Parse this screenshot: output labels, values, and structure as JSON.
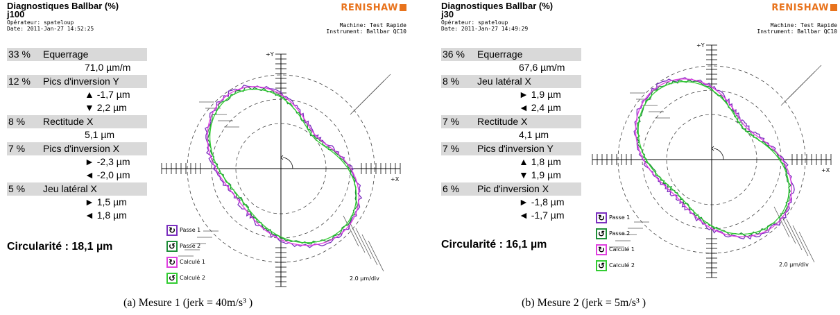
{
  "panels": [
    {
      "title": "Diagnostiques Ballbar (%)",
      "subtitle": "j100",
      "operator": "Opérateur: spateloup",
      "date": "Date: 2011-Jan-27 14:52:25",
      "brand": "RENISHAW",
      "machine": "Machine: Test Rapide",
      "instrument": "Instrument: Ballbar QC10",
      "results": [
        {
          "pct": "33 %",
          "name": "Equerrage",
          "values": [
            "71,0 µm/m"
          ]
        },
        {
          "pct": "12 %",
          "name": "Pics d'inversion Y",
          "values": [
            "▲ -1,7 µm",
            "▼ 2,2 µm"
          ]
        },
        {
          "pct": "8 %",
          "name": "Rectitude X",
          "values": [
            "5,1 µm"
          ]
        },
        {
          "pct": "7 %",
          "name": "Pics d'inversion X",
          "values": [
            "► -2,3 µm",
            "◄ -2,0 µm"
          ]
        },
        {
          "pct": "5 %",
          "name": "Jeu latéral X",
          "values": [
            "► 1,5 µm",
            "◄ 1,8 µm"
          ]
        }
      ],
      "circularity": "Circularité : 18,1 µm",
      "axis_x": "+X",
      "axis_y": "+Y",
      "scale": "2.0 µm/div",
      "legend": [
        {
          "label": "Passe 1",
          "color": "#7b2fbf"
        },
        {
          "label": "Passe 2",
          "color": "#1f8f3a"
        },
        {
          "label": "Calculé 1",
          "color": "#e040e0"
        },
        {
          "label": "Calculé 2",
          "color": "#33cc33"
        }
      ],
      "caption": "(a) Mesure 1 (jerk = 40m/s³ )"
    },
    {
      "title": "Diagnostiques Ballbar (%)",
      "subtitle": "j30",
      "operator": "Opérateur: spateloup",
      "date": "Date: 2011-Jan-27 14:49:29",
      "brand": "RENISHAW",
      "machine": "Machine: Test Rapide",
      "instrument": "Instrument: Ballbar QC10",
      "results": [
        {
          "pct": "36 %",
          "name": "Equerrage",
          "values": [
            "67,6 µm/m"
          ]
        },
        {
          "pct": "8 %",
          "name": "Jeu latéral X",
          "values": [
            "► 1,9 µm",
            "◄ 2,4 µm"
          ]
        },
        {
          "pct": "7 %",
          "name": "Rectitude X",
          "values": [
            "4,1 µm"
          ]
        },
        {
          "pct": "7 %",
          "name": "Pics d'inversion Y",
          "values": [
            "▲ 1,8 µm",
            "▼ 1,9 µm"
          ]
        },
        {
          "pct": "6 %",
          "name": "Pic d'inversion X",
          "values": [
            "► -1,8 µm",
            "◄ -1,7 µm"
          ]
        }
      ],
      "circularity": "Circularité : 16,1 µm",
      "axis_x": "+X",
      "axis_y": "+Y",
      "scale": "2.0 µm/div",
      "legend": [
        {
          "label": "Passe 1",
          "color": "#7b2fbf"
        },
        {
          "label": "Passe 2",
          "color": "#1f8f3a"
        },
        {
          "label": "Calculé 1",
          "color": "#e040e0"
        },
        {
          "label": "Calculé 2",
          "color": "#33cc33"
        }
      ],
      "caption": "(b) Mesure 2 (jerk = 5m/s³ )"
    }
  ]
}
